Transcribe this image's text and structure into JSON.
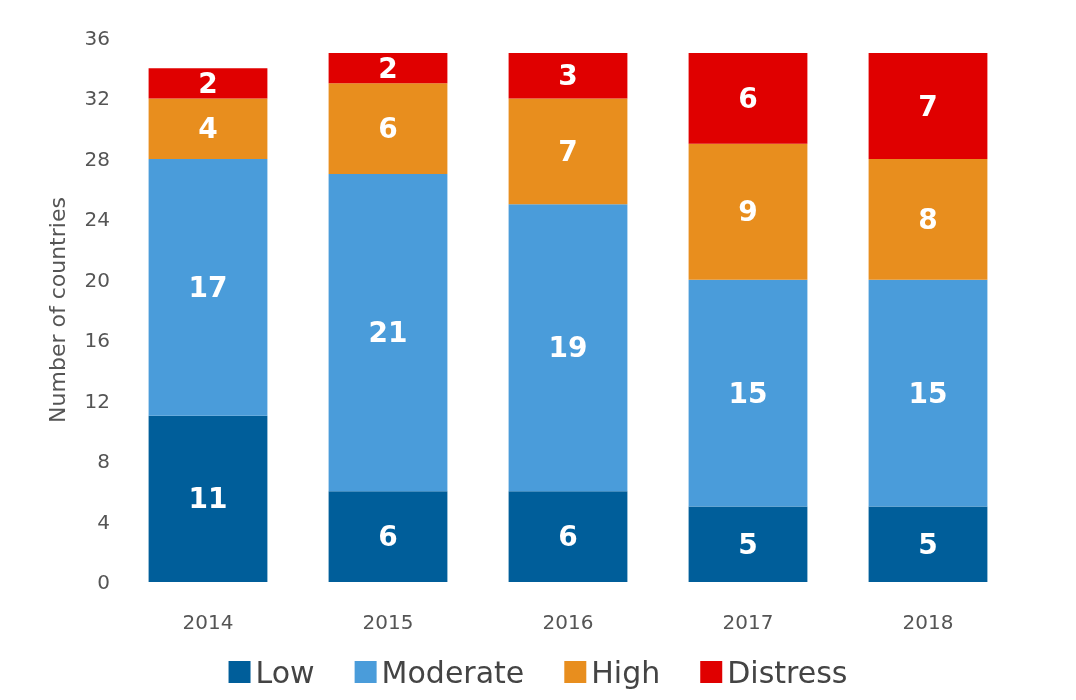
{
  "chart_data": {
    "type": "bar",
    "stacked": true,
    "ylabel": "Number of countries",
    "categories": [
      "2014",
      "2015",
      "2016",
      "2017",
      "2018"
    ],
    "series": [
      {
        "name": "Low",
        "color": "#005e9a",
        "values": [
          11,
          6,
          6,
          5,
          5
        ]
      },
      {
        "name": "Moderate",
        "color": "#4a9cda",
        "values": [
          17,
          21,
          19,
          15,
          15
        ]
      },
      {
        "name": "High",
        "color": "#e88e1e",
        "values": [
          4,
          6,
          7,
          9,
          8
        ]
      },
      {
        "name": "Distress",
        "color": "#e00000",
        "values": [
          2,
          2,
          3,
          6,
          7
        ]
      }
    ],
    "ylim": [
      0,
      36
    ],
    "yticks": [
      0,
      4,
      8,
      12,
      16,
      20,
      24,
      28,
      32,
      36
    ],
    "data_labels": true,
    "grid": false,
    "legend": "bottom"
  }
}
